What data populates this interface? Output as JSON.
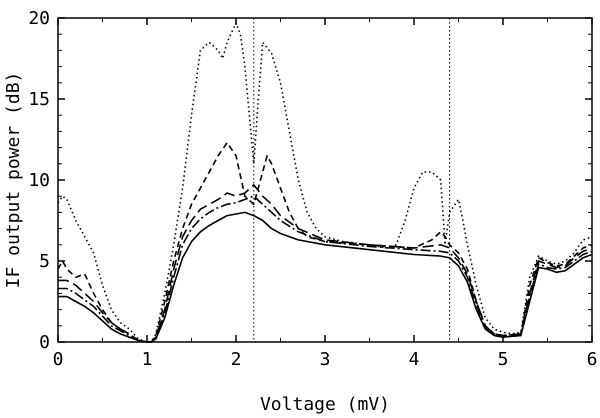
{
  "chart_data": {
    "type": "line",
    "title": "",
    "xlabel": "Voltage (mV)",
    "ylabel": "IF output power (dB)",
    "xlim": [
      0,
      6
    ],
    "ylim": [
      0,
      20
    ],
    "xticks": [
      "0",
      "1",
      "2",
      "3",
      "4",
      "5",
      "6"
    ],
    "yticks": [
      "0",
      "5",
      "10",
      "15",
      "20"
    ],
    "grid": false,
    "legend": "none",
    "reference_lines_x": [
      2.2,
      4.4
    ],
    "series": [
      {
        "style": "dotted",
        "points": [
          [
            0,
            8.6
          ],
          [
            0.05,
            9.0
          ],
          [
            0.1,
            8.8
          ],
          [
            0.2,
            7.5
          ],
          [
            0.3,
            6.5
          ],
          [
            0.4,
            5.5
          ],
          [
            0.5,
            3.5
          ],
          [
            0.6,
            2.0
          ],
          [
            0.7,
            1.2
          ],
          [
            0.8,
            0.8
          ],
          [
            0.9,
            0.2
          ],
          [
            1.0,
            0.0
          ],
          [
            1.05,
            0.0
          ],
          [
            1.1,
            0.5
          ],
          [
            1.2,
            3.0
          ],
          [
            1.3,
            6.0
          ],
          [
            1.4,
            9.5
          ],
          [
            1.5,
            14.0
          ],
          [
            1.6,
            18.0
          ],
          [
            1.7,
            18.5
          ],
          [
            1.8,
            18.0
          ],
          [
            1.85,
            17.5
          ],
          [
            1.9,
            18.5
          ],
          [
            2.0,
            19.7
          ],
          [
            2.05,
            19.0
          ],
          [
            2.1,
            17.0
          ],
          [
            2.2,
            11.0
          ],
          [
            2.25,
            15.0
          ],
          [
            2.3,
            18.5
          ],
          [
            2.4,
            17.8
          ],
          [
            2.5,
            16.0
          ],
          [
            2.6,
            13.0
          ],
          [
            2.7,
            10.0
          ],
          [
            2.8,
            8.0
          ],
          [
            2.9,
            7.0
          ],
          [
            3.0,
            6.5
          ],
          [
            3.2,
            6.2
          ],
          [
            3.5,
            6.0
          ],
          [
            3.7,
            5.8
          ],
          [
            3.8,
            6.0
          ],
          [
            3.9,
            7.5
          ],
          [
            4.0,
            9.5
          ],
          [
            4.1,
            10.5
          ],
          [
            4.2,
            10.5
          ],
          [
            4.3,
            10.0
          ],
          [
            4.35,
            6.0
          ],
          [
            4.4,
            8.0
          ],
          [
            4.5,
            8.8
          ],
          [
            4.55,
            7.5
          ],
          [
            4.6,
            6.0
          ],
          [
            4.7,
            3.5
          ],
          [
            4.8,
            1.5
          ],
          [
            4.9,
            0.8
          ],
          [
            5.0,
            0.6
          ],
          [
            5.1,
            0.5
          ],
          [
            5.2,
            0.6
          ],
          [
            5.3,
            4.0
          ],
          [
            5.4,
            5.3
          ],
          [
            5.5,
            5.0
          ],
          [
            5.6,
            4.8
          ],
          [
            5.7,
            5.0
          ],
          [
            5.8,
            5.5
          ],
          [
            5.9,
            6.3
          ],
          [
            6.0,
            6.5
          ]
        ]
      },
      {
        "style": "short-dash",
        "points": [
          [
            0,
            4.5
          ],
          [
            0.05,
            5.0
          ],
          [
            0.1,
            4.5
          ],
          [
            0.2,
            4.0
          ],
          [
            0.3,
            4.2
          ],
          [
            0.4,
            3.0
          ],
          [
            0.5,
            2.0
          ],
          [
            0.6,
            1.2
          ],
          [
            0.7,
            0.8
          ],
          [
            0.8,
            0.5
          ],
          [
            0.9,
            0.1
          ],
          [
            1.0,
            0.0
          ],
          [
            1.05,
            0.0
          ],
          [
            1.1,
            0.4
          ],
          [
            1.2,
            2.5
          ],
          [
            1.3,
            5.0
          ],
          [
            1.4,
            7.0
          ],
          [
            1.5,
            8.5
          ],
          [
            1.6,
            9.5
          ],
          [
            1.7,
            10.5
          ],
          [
            1.8,
            11.5
          ],
          [
            1.9,
            12.3
          ],
          [
            2.0,
            11.5
          ],
          [
            2.1,
            9.0
          ],
          [
            2.2,
            8.5
          ],
          [
            2.3,
            10.5
          ],
          [
            2.35,
            11.5
          ],
          [
            2.4,
            11.0
          ],
          [
            2.5,
            9.5
          ],
          [
            2.6,
            8.0
          ],
          [
            2.7,
            7.0
          ],
          [
            2.8,
            6.5
          ],
          [
            3.0,
            6.2
          ],
          [
            3.5,
            6.0
          ],
          [
            4.0,
            5.8
          ],
          [
            4.2,
            6.3
          ],
          [
            4.3,
            6.8
          ],
          [
            4.35,
            6.5
          ],
          [
            4.4,
            6.0
          ],
          [
            4.5,
            5.5
          ],
          [
            4.6,
            4.5
          ],
          [
            4.7,
            2.5
          ],
          [
            4.8,
            1.0
          ],
          [
            4.9,
            0.5
          ],
          [
            5.0,
            0.4
          ],
          [
            5.2,
            0.5
          ],
          [
            5.3,
            3.5
          ],
          [
            5.4,
            5.2
          ],
          [
            5.5,
            4.9
          ],
          [
            5.6,
            4.7
          ],
          [
            5.7,
            4.8
          ],
          [
            5.8,
            5.3
          ],
          [
            5.9,
            5.8
          ],
          [
            6.0,
            6.0
          ]
        ]
      },
      {
        "style": "long-dash",
        "points": [
          [
            0,
            3.8
          ],
          [
            0.1,
            3.8
          ],
          [
            0.2,
            3.5
          ],
          [
            0.3,
            3.0
          ],
          [
            0.4,
            2.5
          ],
          [
            0.5,
            1.8
          ],
          [
            0.6,
            1.2
          ],
          [
            0.7,
            0.8
          ],
          [
            0.8,
            0.5
          ],
          [
            0.9,
            0.1
          ],
          [
            1.0,
            0.0
          ],
          [
            1.05,
            0.0
          ],
          [
            1.1,
            0.3
          ],
          [
            1.2,
            2.0
          ],
          [
            1.3,
            4.5
          ],
          [
            1.4,
            6.5
          ],
          [
            1.5,
            7.5
          ],
          [
            1.6,
            8.2
          ],
          [
            1.7,
            8.5
          ],
          [
            1.8,
            8.8
          ],
          [
            1.9,
            9.2
          ],
          [
            2.0,
            9.0
          ],
          [
            2.1,
            9.2
          ],
          [
            2.2,
            9.7
          ],
          [
            2.3,
            9.0
          ],
          [
            2.4,
            8.5
          ],
          [
            2.5,
            7.8
          ],
          [
            2.7,
            7.0
          ],
          [
            3.0,
            6.3
          ],
          [
            3.5,
            6.0
          ],
          [
            4.0,
            5.8
          ],
          [
            4.3,
            6.0
          ],
          [
            4.4,
            5.8
          ],
          [
            4.5,
            5.2
          ],
          [
            4.6,
            4.2
          ],
          [
            4.7,
            2.5
          ],
          [
            4.8,
            1.0
          ],
          [
            4.9,
            0.5
          ],
          [
            5.0,
            0.4
          ],
          [
            5.2,
            0.5
          ],
          [
            5.3,
            3.0
          ],
          [
            5.4,
            5.0
          ],
          [
            5.5,
            4.8
          ],
          [
            5.6,
            4.6
          ],
          [
            5.7,
            4.7
          ],
          [
            5.8,
            5.2
          ],
          [
            5.9,
            5.6
          ],
          [
            6.0,
            5.8
          ]
        ]
      },
      {
        "style": "dash-dot",
        "points": [
          [
            0,
            3.3
          ],
          [
            0.1,
            3.3
          ],
          [
            0.2,
            3.0
          ],
          [
            0.3,
            2.6
          ],
          [
            0.4,
            2.2
          ],
          [
            0.5,
            1.6
          ],
          [
            0.6,
            1.0
          ],
          [
            0.7,
            0.7
          ],
          [
            0.8,
            0.4
          ],
          [
            0.9,
            0.1
          ],
          [
            1.0,
            0.0
          ],
          [
            1.05,
            0.0
          ],
          [
            1.1,
            0.3
          ],
          [
            1.2,
            1.8
          ],
          [
            1.3,
            4.0
          ],
          [
            1.4,
            6.0
          ],
          [
            1.5,
            7.0
          ],
          [
            1.6,
            7.6
          ],
          [
            1.7,
            8.0
          ],
          [
            1.8,
            8.3
          ],
          [
            1.9,
            8.5
          ],
          [
            2.0,
            8.6
          ],
          [
            2.1,
            8.8
          ],
          [
            2.2,
            9.0
          ],
          [
            2.3,
            8.5
          ],
          [
            2.4,
            8.0
          ],
          [
            2.5,
            7.5
          ],
          [
            2.7,
            6.8
          ],
          [
            3.0,
            6.2
          ],
          [
            3.5,
            5.9
          ],
          [
            4.0,
            5.7
          ],
          [
            4.3,
            5.6
          ],
          [
            4.4,
            5.5
          ],
          [
            4.5,
            5.0
          ],
          [
            4.6,
            4.0
          ],
          [
            4.7,
            2.3
          ],
          [
            4.8,
            0.9
          ],
          [
            4.9,
            0.4
          ],
          [
            5.0,
            0.3
          ],
          [
            5.2,
            0.4
          ],
          [
            5.3,
            2.8
          ],
          [
            5.4,
            4.8
          ],
          [
            5.5,
            4.6
          ],
          [
            5.6,
            4.5
          ],
          [
            5.7,
            4.6
          ],
          [
            5.8,
            5.0
          ],
          [
            5.9,
            5.4
          ],
          [
            6.0,
            5.6
          ]
        ]
      },
      {
        "style": "solid",
        "points": [
          [
            0,
            2.8
          ],
          [
            0.1,
            2.8
          ],
          [
            0.2,
            2.5
          ],
          [
            0.3,
            2.2
          ],
          [
            0.4,
            1.8
          ],
          [
            0.5,
            1.3
          ],
          [
            0.6,
            0.8
          ],
          [
            0.7,
            0.5
          ],
          [
            0.8,
            0.3
          ],
          [
            0.9,
            0.1
          ],
          [
            1.0,
            0.0
          ],
          [
            1.05,
            0.0
          ],
          [
            1.1,
            0.2
          ],
          [
            1.2,
            1.5
          ],
          [
            1.3,
            3.5
          ],
          [
            1.4,
            5.2
          ],
          [
            1.5,
            6.2
          ],
          [
            1.6,
            6.8
          ],
          [
            1.7,
            7.2
          ],
          [
            1.8,
            7.5
          ],
          [
            1.9,
            7.8
          ],
          [
            2.0,
            7.9
          ],
          [
            2.1,
            8.0
          ],
          [
            2.2,
            7.8
          ],
          [
            2.3,
            7.5
          ],
          [
            2.4,
            7.0
          ],
          [
            2.5,
            6.7
          ],
          [
            2.7,
            6.3
          ],
          [
            3.0,
            6.0
          ],
          [
            3.5,
            5.7
          ],
          [
            4.0,
            5.4
          ],
          [
            4.3,
            5.3
          ],
          [
            4.4,
            5.2
          ],
          [
            4.5,
            4.7
          ],
          [
            4.6,
            3.7
          ],
          [
            4.7,
            2.0
          ],
          [
            4.8,
            0.8
          ],
          [
            4.9,
            0.4
          ],
          [
            5.0,
            0.3
          ],
          [
            5.2,
            0.4
          ],
          [
            5.3,
            2.5
          ],
          [
            5.4,
            4.6
          ],
          [
            5.5,
            4.5
          ],
          [
            5.6,
            4.3
          ],
          [
            5.7,
            4.4
          ],
          [
            5.8,
            4.8
          ],
          [
            5.9,
            5.2
          ],
          [
            6.0,
            5.4
          ]
        ]
      }
    ]
  }
}
